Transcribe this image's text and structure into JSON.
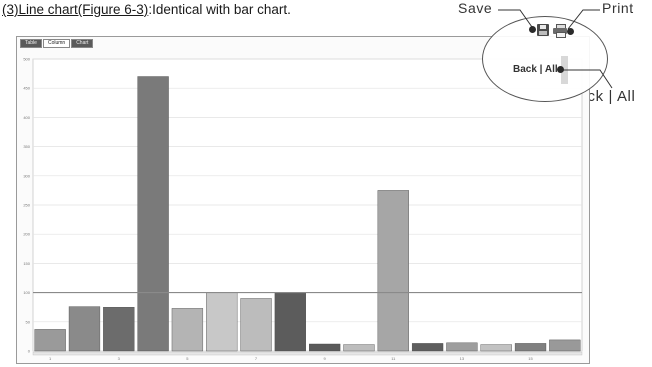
{
  "caption": {
    "prefix": "(3)Line chart(Figure 6-3)",
    "suffix": ":Identical with bar chart."
  },
  "callouts": {
    "save": "Save",
    "print": "Print",
    "back_all": "Back | All"
  },
  "toolbar": {
    "back_all": "Back | All",
    "save_icon": "floppy-disk-icon",
    "print_icon": "printer-icon"
  },
  "tabs": [
    {
      "label": "Table"
    },
    {
      "label": "Column"
    },
    {
      "label": "Chart"
    }
  ],
  "chart_data": {
    "type": "bar",
    "title": "",
    "xlabel": "",
    "ylabel": "",
    "ylim": [
      0,
      500
    ],
    "y_ticks": [
      0,
      50,
      100,
      150,
      200,
      250,
      300,
      350,
      400,
      450,
      500
    ],
    "x_tick_labels": [
      "1",
      "3",
      "5",
      "7",
      "9",
      "11",
      "13",
      "15"
    ],
    "categories": [
      "1",
      "2",
      "3",
      "4",
      "5",
      "6",
      "7",
      "8",
      "9",
      "10",
      "11",
      "12",
      "13",
      "14",
      "15",
      "16"
    ],
    "values": [
      37,
      76,
      75,
      470,
      73,
      100,
      90,
      100,
      12,
      11,
      275,
      13,
      14,
      11,
      13,
      19
    ],
    "colors": [
      "#9a9a9a",
      "#8a8a8a",
      "#6c6c6c",
      "#7a7a7a",
      "#b4b4b4",
      "#c8c8c8",
      "#bcbcbc",
      "#5c5c5c",
      "#5a5a5a",
      "#bdbdbd",
      "#a6a6a6",
      "#5e5e5e",
      "#9e9e9e",
      "#c2c2c2",
      "#808080",
      "#999999"
    ],
    "reference_line": 100,
    "grid": true
  }
}
